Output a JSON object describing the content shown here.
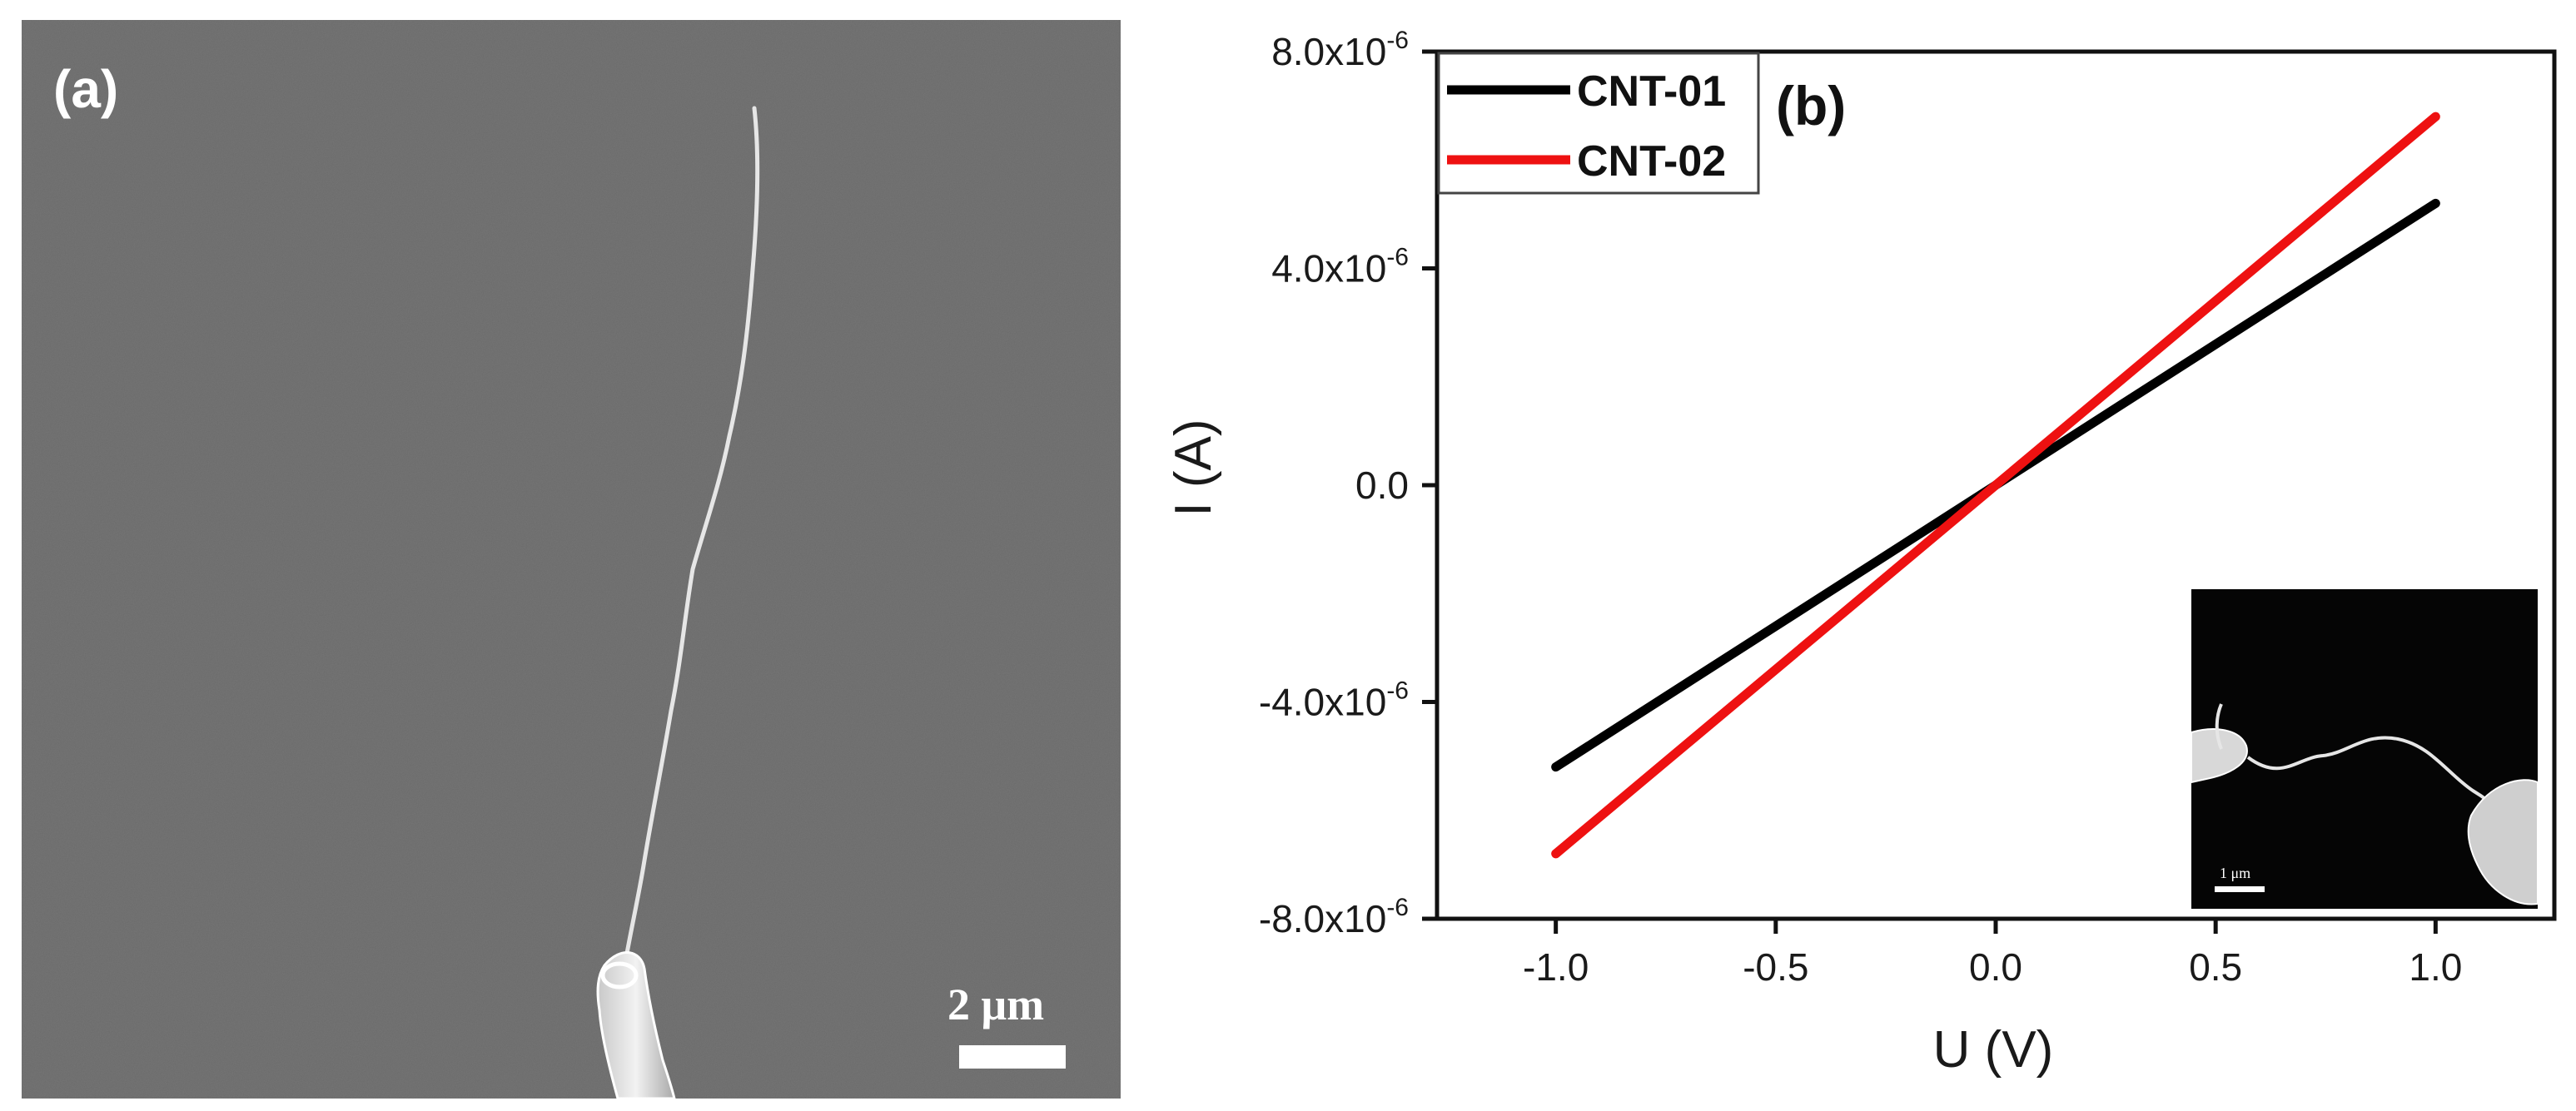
{
  "panel_a": {
    "label": "(a)",
    "scale_bar": "2 μm"
  },
  "chart_data": {
    "type": "line",
    "panel_label": "(b)",
    "xlabel": "U (V)",
    "ylabel": "I (A)",
    "xlim": [
      -1.27,
      1.27
    ],
    "ylim": [
      -8e-06,
      8e-06
    ],
    "x_ticks": [
      -1.0,
      -0.5,
      0.0,
      0.5,
      1.0
    ],
    "x_tick_labels": [
      "-1.0",
      "-0.5",
      "0.0",
      "0.5",
      "1.0"
    ],
    "y_ticks": [
      -8e-06,
      -4e-06,
      0.0,
      4e-06,
      8e-06
    ],
    "y_tick_labels": [
      {
        "mantissa": "-8.0x10",
        "exp": "-6"
      },
      {
        "mantissa": "-4.0x10",
        "exp": "-6"
      },
      {
        "mantissa": "0.0",
        "exp": ""
      },
      {
        "mantissa": "4.0x10",
        "exp": "-6"
      },
      {
        "mantissa": "8.0x10",
        "exp": "-6"
      }
    ],
    "legend_position": "top-left",
    "grid": false,
    "series": [
      {
        "name": "CNT-01",
        "color": "#000000",
        "x": [
          -1.0,
          0.0,
          1.0
        ],
        "y": [
          -5.2e-06,
          0.0,
          5.2e-06
        ]
      },
      {
        "name": "CNT-02",
        "color": "#ee1111",
        "x": [
          -1.0,
          0.0,
          1.0
        ],
        "y": [
          -6.8e-06,
          0.0,
          6.8e-06
        ]
      }
    ],
    "inset": {
      "scale_bar": "1 μm"
    }
  }
}
